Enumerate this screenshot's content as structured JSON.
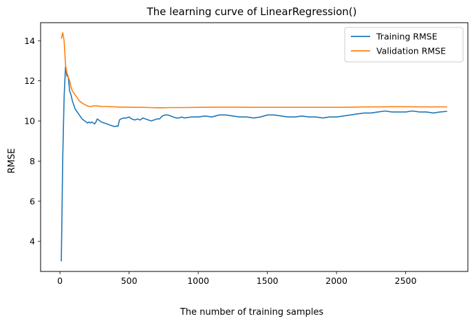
{
  "chart_data": {
    "type": "line",
    "title": "The learning curve of LinearRegression()",
    "xlabel": "The number of training samples",
    "ylabel": "RMSE",
    "xlim": [
      -140,
      2950
    ],
    "ylim": [
      2.5,
      14.9
    ],
    "xticks": [
      0,
      500,
      1000,
      1500,
      2000,
      2500
    ],
    "yticks": [
      4,
      6,
      8,
      10,
      12,
      14
    ],
    "grid": false,
    "legend_position": "top-right",
    "series": [
      {
        "name": "Training RMSE",
        "color": "#1f77b4",
        "x": [
          10,
          20,
          30,
          40,
          50,
          60,
          70,
          80,
          90,
          100,
          110,
          120,
          130,
          140,
          150,
          160,
          170,
          180,
          190,
          200,
          210,
          220,
          230,
          240,
          250,
          260,
          270,
          280,
          290,
          300,
          320,
          340,
          360,
          380,
          400,
          410,
          420,
          430,
          440,
          460,
          480,
          500,
          520,
          540,
          560,
          580,
          600,
          620,
          640,
          660,
          680,
          700,
          720,
          740,
          760,
          780,
          800,
          820,
          840,
          860,
          880,
          900,
          950,
          1000,
          1050,
          1100,
          1150,
          1200,
          1250,
          1300,
          1350,
          1400,
          1450,
          1500,
          1550,
          1600,
          1650,
          1700,
          1750,
          1800,
          1850,
          1900,
          1950,
          2000,
          2050,
          2100,
          2150,
          2200,
          2250,
          2300,
          2350,
          2400,
          2450,
          2500,
          2550,
          2600,
          2650,
          2700,
          2750,
          2800
        ],
        "y": [
          3.0,
          8.2,
          11.2,
          12.7,
          12.25,
          12.2,
          11.5,
          11.3,
          11.0,
          10.8,
          10.6,
          10.5,
          10.4,
          10.3,
          10.2,
          10.1,
          10.05,
          10.0,
          9.95,
          9.9,
          9.95,
          9.9,
          9.95,
          9.9,
          9.85,
          9.95,
          10.1,
          10.05,
          10.0,
          9.95,
          9.9,
          9.85,
          9.8,
          9.75,
          9.72,
          9.75,
          9.73,
          10.05,
          10.1,
          10.15,
          10.15,
          10.2,
          10.1,
          10.05,
          10.1,
          10.05,
          10.15,
          10.1,
          10.05,
          10.0,
          10.05,
          10.1,
          10.1,
          10.25,
          10.3,
          10.3,
          10.25,
          10.2,
          10.15,
          10.15,
          10.2,
          10.15,
          10.2,
          10.2,
          10.25,
          10.2,
          10.3,
          10.3,
          10.25,
          10.2,
          10.2,
          10.15,
          10.2,
          10.3,
          10.3,
          10.25,
          10.2,
          10.2,
          10.25,
          10.2,
          10.2,
          10.15,
          10.2,
          10.2,
          10.25,
          10.3,
          10.35,
          10.4,
          10.4,
          10.45,
          10.5,
          10.45,
          10.45,
          10.45,
          10.5,
          10.45,
          10.45,
          10.4,
          10.45,
          10.48
        ]
      },
      {
        "name": "Validation RMSE",
        "color": "#ff7f0e",
        "x": [
          10,
          20,
          30,
          40,
          50,
          60,
          70,
          80,
          90,
          100,
          110,
          120,
          130,
          140,
          150,
          160,
          170,
          180,
          190,
          200,
          210,
          220,
          230,
          240,
          250,
          260,
          270,
          280,
          290,
          300,
          320,
          340,
          360,
          380,
          400,
          450,
          500,
          550,
          600,
          650,
          700,
          750,
          800,
          900,
          1000,
          1100,
          1200,
          1300,
          1400,
          1500,
          1600,
          1700,
          1800,
          1900,
          2000,
          2100,
          2200,
          2300,
          2400,
          2500,
          2600,
          2700,
          2800
        ],
        "y": [
          14.1,
          14.4,
          14.0,
          12.8,
          12.4,
          12.2,
          12.0,
          11.7,
          11.5,
          11.4,
          11.3,
          11.2,
          11.1,
          11.0,
          10.95,
          10.9,
          10.85,
          10.82,
          10.78,
          10.75,
          10.73,
          10.72,
          10.73,
          10.75,
          10.75,
          10.76,
          10.75,
          10.74,
          10.73,
          10.72,
          10.72,
          10.72,
          10.71,
          10.71,
          10.7,
          10.69,
          10.69,
          10.68,
          10.68,
          10.67,
          10.66,
          10.66,
          10.67,
          10.67,
          10.68,
          10.69,
          10.69,
          10.69,
          10.68,
          10.68,
          10.68,
          10.68,
          10.68,
          10.68,
          10.68,
          10.69,
          10.7,
          10.7,
          10.71,
          10.71,
          10.7,
          10.7,
          10.7
        ]
      }
    ]
  }
}
